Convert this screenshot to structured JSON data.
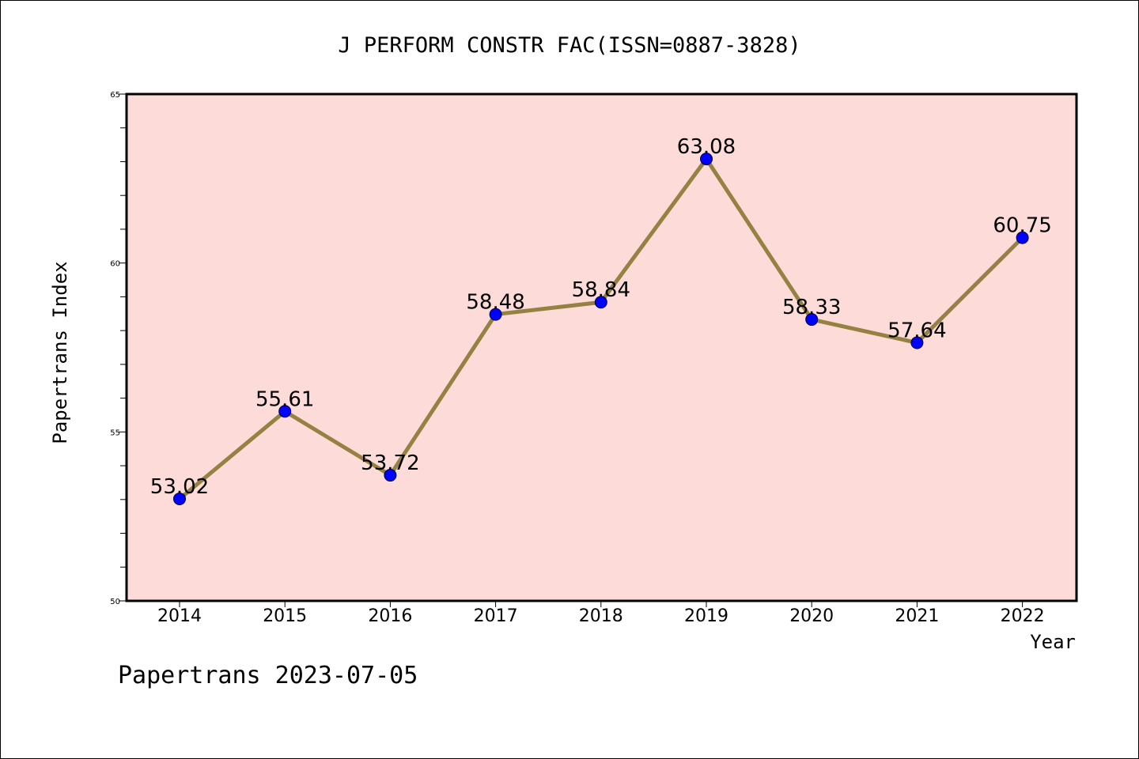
{
  "chart_data": {
    "type": "line",
    "title": "J PERFORM CONSTR FAC(ISSN=0887-3828)",
    "xlabel": "Year",
    "ylabel": "Papertrans Index",
    "footer": "Papertrans 2023-07-05",
    "x": [
      "2014",
      "2015",
      "2016",
      "2017",
      "2018",
      "2019",
      "2020",
      "2021",
      "2022"
    ],
    "series": [
      {
        "values": [
          53.02,
          55.61,
          53.72,
          58.48,
          58.84,
          63.08,
          58.33,
          57.64,
          60.75
        ],
        "labels": [
          "53.02",
          "55.61",
          "53.72",
          "58.48",
          "58.84",
          "63.08",
          "58.33",
          "57.64",
          "60.75"
        ]
      }
    ],
    "ylim": [
      50,
      65
    ],
    "yticks": [
      "50",
      "55",
      "60",
      "65"
    ],
    "grid": false,
    "colors": {
      "plot_background": "#fddbd8",
      "line": "#958141",
      "marker": "#0000ff",
      "axis": "#000000"
    }
  }
}
